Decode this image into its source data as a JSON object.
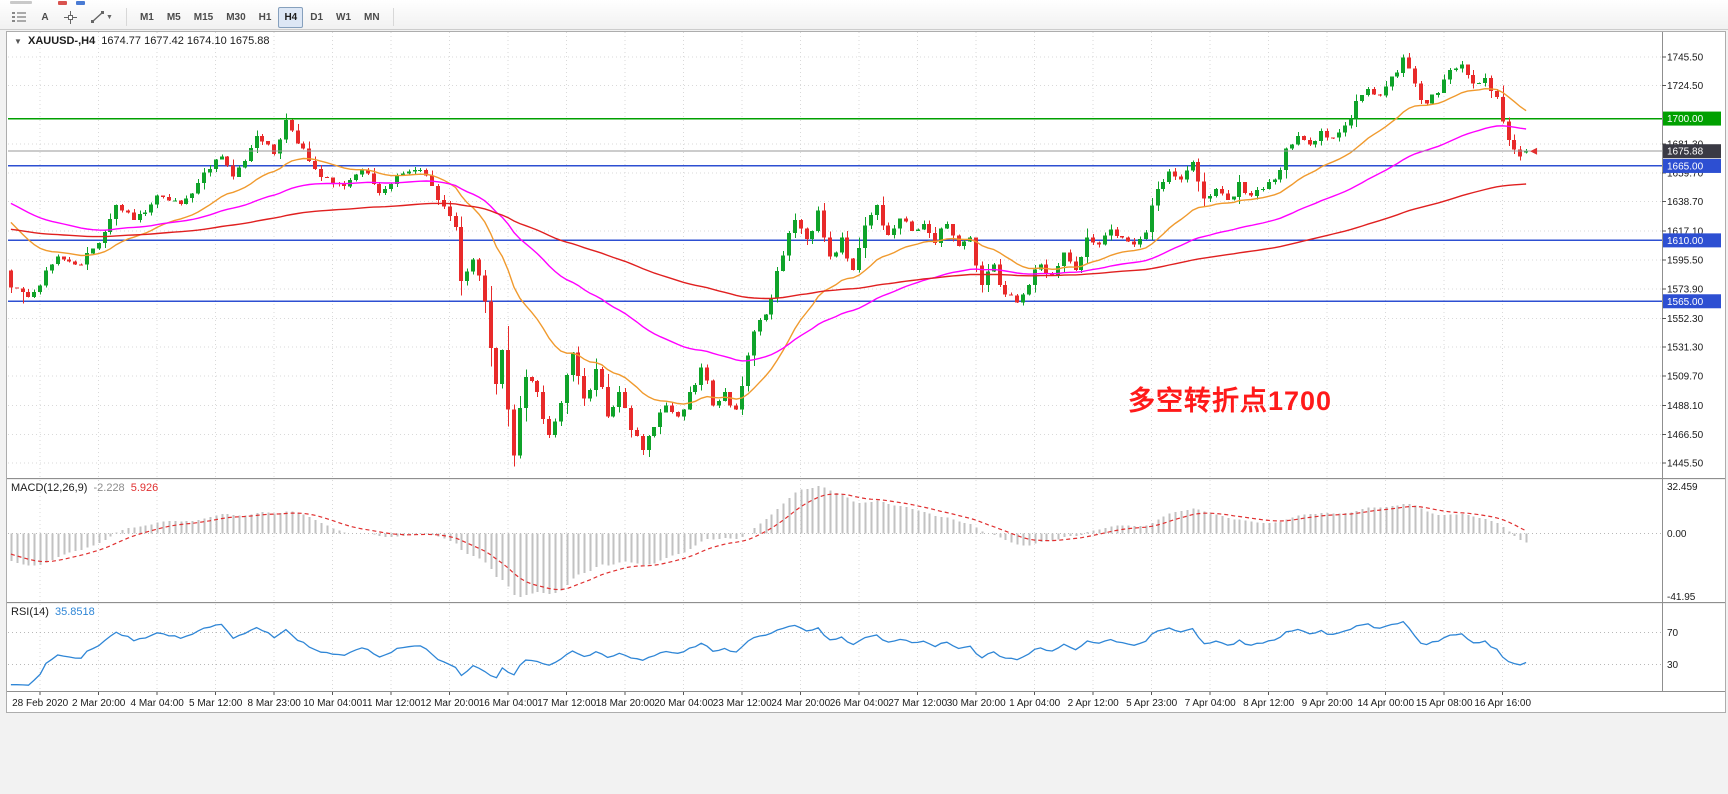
{
  "toolbar": {
    "text_tool_label": "A",
    "timeframes": [
      {
        "label": "M1"
      },
      {
        "label": "M5"
      },
      {
        "label": "M15"
      },
      {
        "label": "M30"
      },
      {
        "label": "H1"
      },
      {
        "label": "H4",
        "active": true
      },
      {
        "label": "D1"
      },
      {
        "label": "W1"
      },
      {
        "label": "MN"
      }
    ]
  },
  "chart_data": {
    "type": "candlestick_with_indicators",
    "symbol": "XAUUSD-",
    "timeframe": "H4",
    "header": {
      "collapse_icon": "▼",
      "symbol_tf": "XAUUSD-,H4",
      "ohlc_text": "1674.77 1677.42 1674.10 1675.88"
    },
    "last_candle": {
      "open": 1674.77,
      "high": 1677.42,
      "low": 1674.1,
      "close": 1675.88
    },
    "current_price": 1675.88,
    "y_axis": {
      "ticks": [
        "1745.50",
        "1724.50",
        "1681.30",
        "1659.70",
        "1638.70",
        "1617.10",
        "1595.50",
        "1573.90",
        "1552.30",
        "1531.30",
        "1509.70",
        "1488.10",
        "1466.50",
        "1445.50"
      ]
    },
    "x_axis": {
      "labels": [
        "28 Feb 2020",
        "2 Mar 20:00",
        "4 Mar 04:00",
        "5 Mar 12:00",
        "8 Mar 23:00",
        "10 Mar 04:00",
        "11 Mar 12:00",
        "12 Mar 20:00",
        "16 Mar 04:00",
        "17 Mar 12:00",
        "18 Mar 20:00",
        "20 Mar 04:00",
        "23 Mar 12:00",
        "24 Mar 20:00",
        "26 Mar 04:00",
        "27 Mar 12:00",
        "30 Mar 20:00",
        "1 Apr 04:00",
        "2 Apr 12:00",
        "5 Apr 23:00",
        "7 Apr 04:00",
        "8 Apr 12:00",
        "9 Apr 20:00",
        "14 Apr 00:00",
        "15 Apr 08:00",
        "16 Apr 16:00"
      ]
    },
    "horizontal_lines": [
      {
        "price": 1700.0,
        "label": "1700.00",
        "color": "#00A000"
      },
      {
        "price": 1665.0,
        "label": "1665.00",
        "color": "#2D4FD2"
      },
      {
        "price": 1610.0,
        "label": "1610.00",
        "color": "#2D4FD2"
      },
      {
        "price": 1565.0,
        "label": "1565.00",
        "color": "#2D4FD2"
      }
    ],
    "annotation": {
      "text": "多空转折点1700",
      "color": "#FF1A1A"
    },
    "candles": {
      "count": 260,
      "waypoints": [
        [
          -120,
          1555
        ],
        [
          -90,
          1580
        ],
        [
          -60,
          1640
        ],
        [
          -40,
          1665
        ],
        [
          -25,
          1689
        ],
        [
          -10,
          1630
        ],
        [
          -2,
          1600
        ],
        [
          0,
          1575
        ],
        [
          3,
          1568
        ],
        [
          8,
          1598
        ],
        [
          12,
          1592
        ],
        [
          15,
          1608
        ],
        [
          18,
          1636
        ],
        [
          21,
          1625
        ],
        [
          25,
          1643
        ],
        [
          29,
          1637
        ],
        [
          33,
          1660
        ],
        [
          36,
          1672
        ],
        [
          38,
          1657
        ],
        [
          42,
          1687
        ],
        [
          45,
          1674
        ],
        [
          47,
          1699
        ],
        [
          50,
          1678
        ],
        [
          53,
          1657
        ],
        [
          57,
          1650
        ],
        [
          60,
          1662
        ],
        [
          63,
          1645
        ],
        [
          66,
          1658
        ],
        [
          70,
          1662
        ],
        [
          73,
          1640
        ],
        [
          76,
          1620
        ],
        [
          77,
          1580
        ],
        [
          79,
          1596
        ],
        [
          81,
          1565
        ],
        [
          83,
          1504
        ],
        [
          84,
          1529
        ],
        [
          85,
          1485
        ],
        [
          86,
          1451
        ],
        [
          87,
          1486
        ],
        [
          88,
          1509
        ],
        [
          90,
          1498
        ],
        [
          92,
          1466
        ],
        [
          94,
          1490
        ],
        [
          96,
          1527
        ],
        [
          98,
          1493
        ],
        [
          100,
          1515
        ],
        [
          102,
          1480
        ],
        [
          104,
          1498
        ],
        [
          106,
          1470
        ],
        [
          108,
          1455
        ],
        [
          110,
          1472
        ],
        [
          112,
          1488
        ],
        [
          114,
          1480
        ],
        [
          116,
          1498
        ],
        [
          118,
          1516
        ],
        [
          120,
          1488
        ],
        [
          122,
          1498
        ],
        [
          124,
          1485
        ],
        [
          126,
          1525
        ],
        [
          128,
          1551
        ],
        [
          130,
          1567
        ],
        [
          132,
          1599
        ],
        [
          134,
          1625
        ],
        [
          136,
          1611
        ],
        [
          138,
          1632
        ],
        [
          140,
          1598
        ],
        [
          142,
          1612
        ],
        [
          144,
          1588
        ],
        [
          146,
          1621
        ],
        [
          148,
          1636
        ],
        [
          150,
          1614
        ],
        [
          152,
          1626
        ],
        [
          154,
          1617
        ],
        [
          156,
          1622
        ],
        [
          158,
          1608
        ],
        [
          160,
          1622
        ],
        [
          162,
          1606
        ],
        [
          164,
          1612
        ],
        [
          166,
          1577
        ],
        [
          168,
          1592
        ],
        [
          170,
          1570
        ],
        [
          172,
          1564
        ],
        [
          174,
          1577
        ],
        [
          176,
          1592
        ],
        [
          178,
          1584
        ],
        [
          180,
          1601
        ],
        [
          182,
          1588
        ],
        [
          184,
          1612
        ],
        [
          186,
          1607
        ],
        [
          188,
          1618
        ],
        [
          190,
          1612
        ],
        [
          192,
          1607
        ],
        [
          194,
          1616
        ],
        [
          196,
          1648
        ],
        [
          198,
          1661
        ],
        [
          200,
          1655
        ],
        [
          202,
          1668
        ],
        [
          204,
          1641
        ],
        [
          206,
          1648
        ],
        [
          208,
          1640
        ],
        [
          210,
          1653
        ],
        [
          212,
          1643
        ],
        [
          214,
          1648
        ],
        [
          216,
          1655
        ],
        [
          218,
          1678
        ],
        [
          220,
          1687
        ],
        [
          222,
          1681
        ],
        [
          224,
          1691
        ],
        [
          226,
          1686
        ],
        [
          228,
          1695
        ],
        [
          230,
          1713
        ],
        [
          232,
          1722
        ],
        [
          234,
          1717
        ],
        [
          236,
          1731
        ],
        [
          238,
          1745
        ],
        [
          240,
          1726
        ],
        [
          242,
          1711
        ],
        [
          244,
          1719
        ],
        [
          246,
          1736
        ],
        [
          248,
          1740
        ],
        [
          250,
          1726
        ],
        [
          252,
          1730
        ],
        [
          254,
          1716
        ],
        [
          255,
          1698
        ],
        [
          256,
          1684
        ],
        [
          257,
          1677
        ],
        [
          258,
          1672
        ],
        [
          259,
          1675.88
        ]
      ],
      "pins": [
        {
          "i": 2,
          "low": 1563.3
        },
        {
          "i": 47,
          "high": 1703.2
        },
        {
          "i": 86,
          "low": 1451.1
        },
        {
          "i": 108,
          "low": 1452.0
        },
        {
          "i": 238,
          "high": 1747.3
        },
        {
          "i": 248,
          "high": 1742.4
        }
      ]
    },
    "moving_averages": [
      {
        "period": 21,
        "color": "#F09A2E"
      },
      {
        "period": 55,
        "color": "#FF00FF"
      },
      {
        "period": 144,
        "color": "#E02020"
      }
    ],
    "macd": {
      "label": "MACD(12,26,9)",
      "main_value": "-2.228",
      "main_value_color": "#8C8C8C",
      "signal_value": "5.926",
      "signal_color": "#E03030",
      "histogram_color": "#C2C2C2",
      "axis_labels": [
        "32.459",
        "0.00",
        "-41.95"
      ]
    },
    "rsi": {
      "label": "RSI(14)",
      "value": "35.8518",
      "period": 14,
      "levels": [
        "70",
        "30"
      ],
      "line_color": "#2F86D6"
    },
    "colors": {
      "up": "#0FA32A",
      "down": "#E82A2A",
      "grid": "#D9D9D9",
      "axis_text": "#1A1A1A",
      "bid_line": "#9A9A9A",
      "bid_badge": "#3A3A44"
    }
  }
}
